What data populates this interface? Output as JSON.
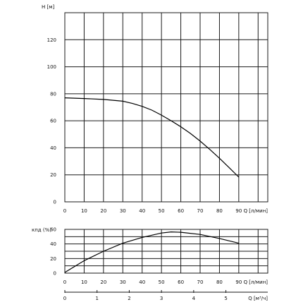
{
  "chart_data": [
    {
      "type": "line",
      "ylabel": "H [м]",
      "xlabel": "Q [л/мин]",
      "xlim": [
        0,
        105
      ],
      "ylim": [
        0,
        140
      ],
      "x_ticks": [
        "0",
        "10",
        "20",
        "30",
        "40",
        "50",
        "60",
        "70",
        "80",
        "90"
      ],
      "y_ticks": [
        "0",
        "20",
        "40",
        "60",
        "80",
        "100",
        "120"
      ],
      "grid": true,
      "series": [
        {
          "x": [
            0,
            10,
            20,
            30,
            35,
            40,
            45,
            50,
            55,
            60,
            65,
            70,
            75,
            80,
            85,
            90
          ],
          "values": [
            77,
            76.5,
            75.8,
            74.5,
            72.8,
            70.7,
            67.9,
            64.2,
            60.0,
            55.6,
            50.6,
            45.0,
            38.8,
            32.3,
            25.4,
            18.3
          ]
        }
      ]
    },
    {
      "type": "line",
      "ylabel": "кпд (%)",
      "xlabel": "Q [л/мин]",
      "xlim": [
        0,
        105
      ],
      "ylim": [
        0,
        60
      ],
      "x_ticks": [
        "0",
        "10",
        "20",
        "30",
        "40",
        "50",
        "60",
        "70",
        "80",
        "90"
      ],
      "y_ticks": [
        "0",
        "20",
        "40",
        "60"
      ],
      "grid": true,
      "secondary_x_axis": {
        "label": "Q [м³/ч]",
        "range": [
          0,
          6.3
        ],
        "ticks": [
          "0",
          "1",
          "2",
          "3",
          "4",
          "5"
        ]
      },
      "series": [
        {
          "x": [
            0,
            10,
            20,
            30,
            40,
            50,
            55,
            60,
            70,
            80,
            90
          ],
          "values": [
            1,
            17,
            30,
            41,
            49,
            55,
            56.5,
            56,
            53,
            47.5,
            41
          ]
        }
      ]
    }
  ]
}
